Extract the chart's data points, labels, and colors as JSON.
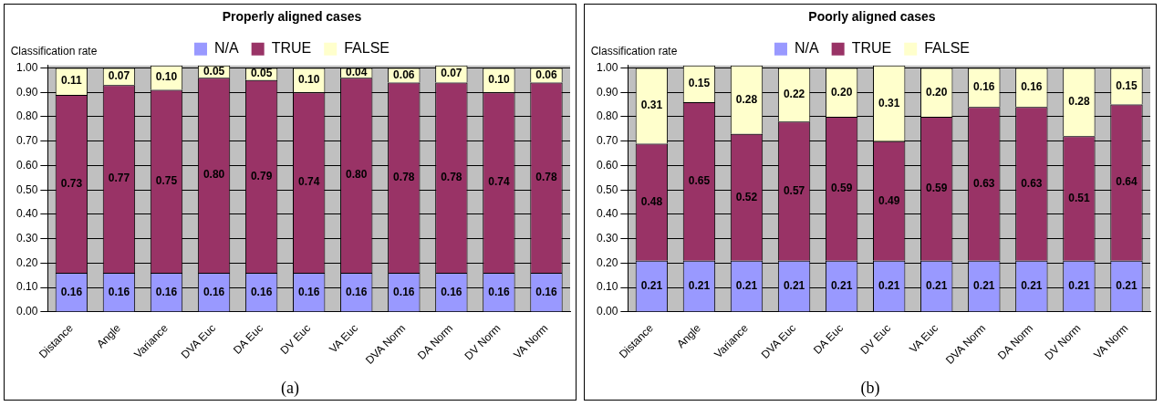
{
  "chart_data": [
    {
      "type": "bar",
      "title": "Properly aligned cases",
      "ylabel": "Classification rate",
      "categories": [
        "Distance",
        "Angle",
        "Variance",
        "DVA Euc",
        "DA Euc",
        "DV Euc",
        "VA Euc",
        "DVA Norm",
        "DA Norm",
        "DV Norm",
        "VA Norm"
      ],
      "stacked": true,
      "series": [
        {
          "name": "N/A",
          "color": "#9999ff",
          "values": [
            0.16,
            0.16,
            0.16,
            0.16,
            0.16,
            0.16,
            0.16,
            0.16,
            0.16,
            0.16,
            0.16
          ],
          "value_labels": [
            "0.16",
            "0.16",
            "0.16",
            "0.16",
            "0.16",
            "0.16",
            "0.16",
            "0.16",
            "0.16",
            "0.16",
            "0.16"
          ]
        },
        {
          "name": "TRUE",
          "color": "#993366",
          "values": [
            0.73,
            0.77,
            0.75,
            0.8,
            0.79,
            0.74,
            0.8,
            0.78,
            0.78,
            0.74,
            0.78
          ],
          "value_labels": [
            "0.73",
            "0.77",
            "0.75",
            "0.80",
            "0.79",
            "0.74",
            "0.80",
            "0.78",
            "0.78",
            "0.74",
            "0.78"
          ]
        },
        {
          "name": "FALSE",
          "color": "#ffffcc",
          "values": [
            0.11,
            0.07,
            0.1,
            0.05,
            0.05,
            0.1,
            0.04,
            0.06,
            0.07,
            0.1,
            0.06
          ],
          "value_labels": [
            "0.11",
            "0.07",
            "0.10",
            "0.05",
            "0.05",
            "0.10",
            "0.04",
            "0.06",
            "0.07",
            "0.10",
            "0.06"
          ]
        }
      ],
      "ylim": [
        0,
        1.01
      ],
      "yticks": [
        {
          "value": 0,
          "label": "0.00"
        },
        {
          "value": 0.1,
          "label": "0.10"
        },
        {
          "value": 0.2,
          "label": "0.20"
        },
        {
          "value": 0.3,
          "label": "0.30"
        },
        {
          "value": 0.4,
          "label": "0.40"
        },
        {
          "value": 0.5,
          "label": "0.50"
        },
        {
          "value": 0.6,
          "label": "0.60"
        },
        {
          "value": 0.7,
          "label": "0.70"
        },
        {
          "value": 0.8,
          "label": "0.80"
        },
        {
          "value": 0.9,
          "label": "0.90"
        },
        {
          "value": 1,
          "label": "1.00"
        }
      ],
      "grid": "y",
      "legend": "top",
      "annotations": [
        "(a)"
      ]
    },
    {
      "type": "bar",
      "title": "Poorly aligned cases",
      "ylabel": "Classification rate",
      "categories": [
        "Distance",
        "Angle",
        "Variance",
        "DVA Euc",
        "DA Euc",
        "DV Euc",
        "VA Euc",
        "DVA Norm",
        "DA Norm",
        "DV Norm",
        "VA Norm"
      ],
      "stacked": true,
      "series": [
        {
          "name": "N/A",
          "color": "#9999ff",
          "values": [
            0.21,
            0.21,
            0.21,
            0.21,
            0.21,
            0.21,
            0.21,
            0.21,
            0.21,
            0.21,
            0.21
          ],
          "value_labels": [
            "0.21",
            "0.21",
            "0.21",
            "0.21",
            "0.21",
            "0.21",
            "0.21",
            "0.21",
            "0.21",
            "0.21",
            "0.21"
          ]
        },
        {
          "name": "TRUE",
          "color": "#993366",
          "values": [
            0.48,
            0.65,
            0.52,
            0.57,
            0.59,
            0.49,
            0.59,
            0.63,
            0.63,
            0.51,
            0.64
          ],
          "value_labels": [
            "0.48",
            "0.65",
            "0.52",
            "0.57",
            "0.59",
            "0.49",
            "0.59",
            "0.63",
            "0.63",
            "0.51",
            "0.64"
          ]
        },
        {
          "name": "FALSE",
          "color": "#ffffcc",
          "values": [
            0.31,
            0.15,
            0.28,
            0.22,
            0.2,
            0.31,
            0.2,
            0.16,
            0.16,
            0.28,
            0.15
          ],
          "value_labels": [
            "0.31",
            "0.15",
            "0.28",
            "0.22",
            "0.20",
            "0.31",
            "0.20",
            "0.16",
            "0.16",
            "0.28",
            "0.15"
          ]
        }
      ],
      "ylim": [
        0,
        1.01
      ],
      "yticks": [
        {
          "value": 0,
          "label": "0.00"
        },
        {
          "value": 0.1,
          "label": "0.10"
        },
        {
          "value": 0.2,
          "label": "0.20"
        },
        {
          "value": 0.3,
          "label": "0.30"
        },
        {
          "value": 0.4,
          "label": "0.40"
        },
        {
          "value": 0.5,
          "label": "0.50"
        },
        {
          "value": 0.6,
          "label": "0.60"
        },
        {
          "value": 0.7,
          "label": "0.70"
        },
        {
          "value": 0.8,
          "label": "0.80"
        },
        {
          "value": 0.9,
          "label": "0.90"
        },
        {
          "value": 1,
          "label": "1.00"
        }
      ],
      "grid": "y",
      "legend": "top",
      "annotations": [
        "(b)"
      ]
    }
  ]
}
